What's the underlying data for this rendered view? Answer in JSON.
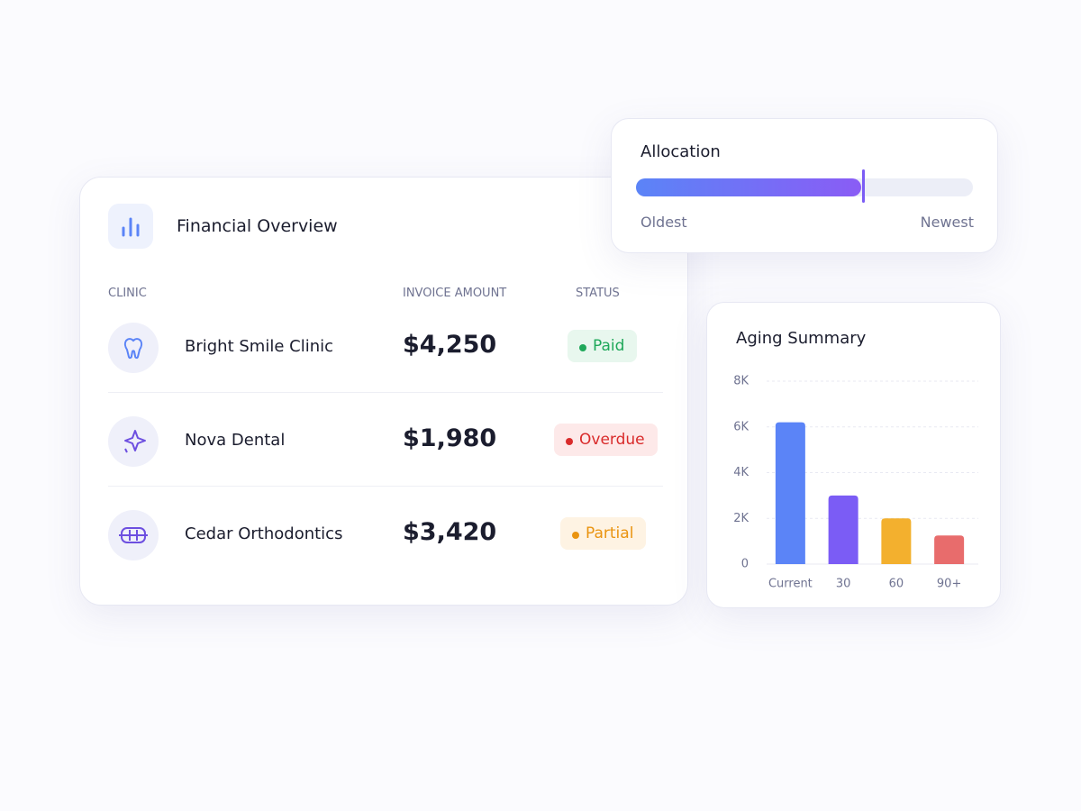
{
  "financial_overview": {
    "title": "Financial Overview",
    "columns": [
      "CLINIC",
      "INVOICE AMOUNT",
      "STATUS"
    ],
    "rows": [
      {
        "clinic": "Bright Smile Clinic",
        "amount": "$4,250",
        "status": "Paid"
      },
      {
        "clinic": "Nova Dental",
        "amount": "$1,980",
        "status": "Overdue"
      },
      {
        "clinic": "Cedar Orthodontics",
        "amount": "$3,420",
        "status": "Partial"
      }
    ]
  },
  "allocation": {
    "title": "Allocation",
    "min_label": "Oldest",
    "max_label": "Newest"
  },
  "chart_data": {
    "type": "bar",
    "title": "Aging Summary",
    "categories": [
      "Current",
      "30",
      "60",
      "90+"
    ],
    "values": [
      6200,
      3000,
      2000,
      1250
    ],
    "colors": [
      "#5b84f7",
      "#7b5cf5",
      "#f3b02e",
      "#e86c6c"
    ],
    "ylim": [
      0,
      8000
    ],
    "yticks": [
      0,
      {
        "value": 2000,
        "label": "2K"
      },
      {
        "value": 4000,
        "label": "4K"
      },
      {
        "value": 6000,
        "label": "6K"
      },
      {
        "value": 8000,
        "label": "8K"
      }
    ],
    "grid": true
  }
}
